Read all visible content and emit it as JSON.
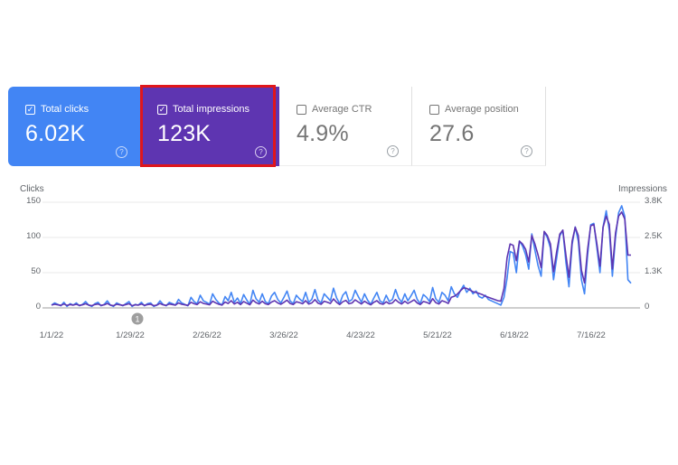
{
  "cards": [
    {
      "label": "Total clicks",
      "value": "6.02K",
      "checked": true
    },
    {
      "label": "Total impressions",
      "value": "123K",
      "checked": true
    },
    {
      "label": "Average CTR",
      "value": "4.9%",
      "checked": false
    },
    {
      "label": "Average position",
      "value": "27.6",
      "checked": false
    }
  ],
  "help_glyph": "?",
  "check_glyph": "✓",
  "chart_data": {
    "type": "line",
    "ylabel": "Clicks",
    "y2label": "Impressions",
    "ylim": [
      0,
      150
    ],
    "y2lim": [
      0,
      3800
    ],
    "y_ticks": [
      "150",
      "100",
      "50",
      "0"
    ],
    "y2_ticks": [
      "3.8K",
      "2.5K",
      "1.3K",
      "0"
    ],
    "x_ticks": [
      "1/1/22",
      "1/29/22",
      "2/26/22",
      "3/26/22",
      "4/23/22",
      "5/21/22",
      "6/18/22",
      "7/16/22"
    ],
    "annotation": "1",
    "colors": {
      "clicks": "#4285f4",
      "impressions": "#5e35b1"
    },
    "series": [
      {
        "name": "Clicks",
        "color": "#4285f4",
        "values": [
          4,
          7,
          5,
          3,
          8,
          2,
          6,
          4,
          7,
          3,
          5,
          9,
          4,
          2,
          6,
          8,
          3,
          5,
          10,
          4,
          2,
          7,
          5,
          3,
          6,
          9,
          2,
          5,
          4,
          8,
          3,
          6,
          7,
          2,
          4,
          10,
          5,
          3,
          8,
          6,
          4,
          12,
          7,
          5,
          3,
          15,
          9,
          6,
          18,
          10,
          8,
          5,
          20,
          12,
          7,
          4,
          16,
          10,
          22,
          8,
          14,
          6,
          19,
          11,
          5,
          25,
          13,
          8,
          20,
          9,
          6,
          17,
          22,
          12,
          7,
          15,
          24,
          10,
          6,
          18,
          13,
          9,
          22,
          8,
          12,
          26,
          11,
          7,
          20,
          15,
          10,
          28,
          14,
          6,
          18,
          23,
          9,
          12,
          25,
          16,
          8,
          20,
          11,
          5,
          14,
          22,
          10,
          7,
          18,
          9,
          12,
          26,
          14,
          8,
          20,
          10,
          17,
          25,
          12,
          6,
          19,
          15,
          9,
          29,
          13,
          8,
          22,
          18,
          10,
          30,
          20,
          15,
          25,
          32,
          22,
          28,
          20,
          24,
          16,
          14,
          18,
          12,
          10,
          8,
          6,
          4,
          15,
          42,
          80,
          78,
          50,
          95,
          88,
          75,
          55,
          105,
          82,
          60,
          45,
          108,
          100,
          85,
          40,
          70,
          102,
          110,
          65,
          30,
          90,
          115,
          95,
          40,
          20,
          75,
          118,
          120,
          85,
          50,
          115,
          138,
          110,
          45,
          100,
          135,
          145,
          130,
          40,
          35
        ]
      },
      {
        "name": "Impressions",
        "color": "#5e35b1",
        "values": [
          100,
          130,
          110,
          90,
          140,
          90,
          120,
          100,
          130,
          90,
          110,
          150,
          100,
          80,
          120,
          140,
          90,
          110,
          160,
          100,
          80,
          130,
          110,
          90,
          120,
          150,
          80,
          110,
          100,
          140,
          90,
          120,
          130,
          80,
          100,
          160,
          110,
          90,
          140,
          120,
          100,
          180,
          130,
          110,
          90,
          200,
          150,
          120,
          220,
          160,
          140,
          110,
          240,
          180,
          130,
          100,
          210,
          160,
          260,
          140,
          200,
          120,
          230,
          170,
          110,
          280,
          190,
          140,
          240,
          150,
          120,
          210,
          260,
          180,
          130,
          200,
          280,
          160,
          120,
          220,
          190,
          150,
          260,
          140,
          180,
          300,
          170,
          130,
          240,
          200,
          160,
          320,
          200,
          120,
          220,
          270,
          150,
          180,
          290,
          210,
          140,
          240,
          170,
          110,
          200,
          260,
          160,
          130,
          220,
          150,
          180,
          300,
          200,
          140,
          240,
          160,
          220,
          290,
          180,
          120,
          230,
          200,
          150,
          330,
          190,
          140,
          260,
          220,
          160,
          380,
          420,
          500,
          620,
          720,
          700,
          640,
          580,
          560,
          520,
          480,
          420,
          380,
          340,
          300,
          260,
          240,
          700,
          1800,
          2300,
          2250,
          1700,
          2400,
          2300,
          2100,
          1650,
          2600,
          2300,
          1900,
          1450,
          2750,
          2600,
          2300,
          1300,
          2000,
          2650,
          2800,
          1900,
          1100,
          2400,
          2900,
          2600,
          1350,
          900,
          2100,
          2950,
          3000,
          2300,
          1500,
          2900,
          3300,
          3000,
          1400,
          2700,
          3300,
          3450,
          3200,
          1900,
          1900
        ]
      }
    ]
  }
}
